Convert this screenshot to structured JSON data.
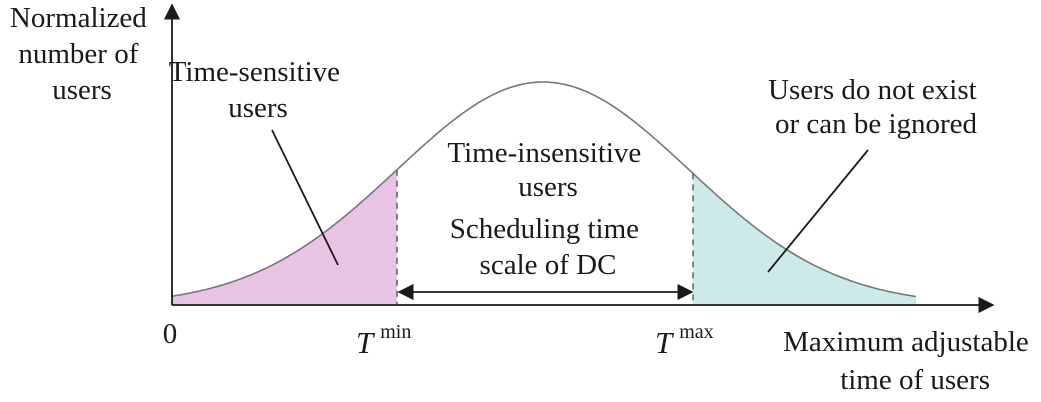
{
  "y_axis_label": [
    "Normalized",
    "number of",
    "users"
  ],
  "x_axis_label": [
    "Maximum adjustable",
    "time of users"
  ],
  "origin_label": "0",
  "t_min": {
    "symbol": "T",
    "superscript": "min"
  },
  "t_max": {
    "symbol": "T",
    "superscript": "max"
  },
  "regions": {
    "time_sensitive": [
      "Time-sensitive",
      "users"
    ],
    "time_insensitive": [
      "Time-insensitive",
      "users"
    ],
    "ignored": [
      "Users do not exist",
      "or can be ignored"
    ]
  },
  "scheduling_label": [
    "Scheduling time",
    "scale of DC"
  ],
  "colors": {
    "time_sensitive_fill": "#e8c3e3",
    "ignored_fill": "#cdeaea",
    "curve": "#777777",
    "axis": "#1a1a1a"
  }
}
